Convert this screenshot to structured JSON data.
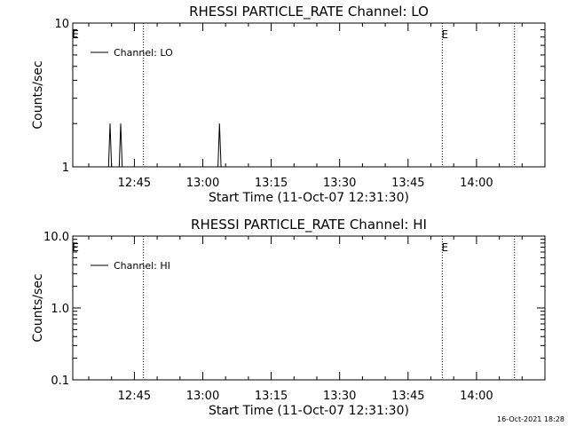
{
  "chart_data": [
    {
      "type": "line",
      "title": "RHESSI PARTICLE_RATE Channel: LO",
      "xlabel": "Start Time (11-Oct-07 12:31:30)",
      "ylabel": "Counts/sec",
      "yscale": "log",
      "ylim": [
        1,
        10
      ],
      "xlim": [
        "12:31:30",
        "14:15:00"
      ],
      "xticks": [
        "12:45",
        "13:00",
        "13:15",
        "13:30",
        "13:45",
        "14:00"
      ],
      "yticks": [
        "1",
        "10"
      ],
      "legend": {
        "position": "top-left",
        "entries": [
          "Channel: LO"
        ]
      },
      "markers": [
        {
          "text": "E",
          "x": "12:31:30"
        },
        {
          "text": "E",
          "x": "13:52:30"
        }
      ],
      "vlines": [
        "12:47:00",
        "13:52:30",
        "14:08:20"
      ],
      "series": [
        {
          "name": "Channel: LO",
          "points": [
            {
              "x": "12:31:30",
              "y": 1
            },
            {
              "x": "12:39:20",
              "y": 1
            },
            {
              "x": "12:39:40",
              "y": 2
            },
            {
              "x": "12:40:00",
              "y": 1
            },
            {
              "x": "12:41:40",
              "y": 1
            },
            {
              "x": "12:42:00",
              "y": 2
            },
            {
              "x": "12:42:20",
              "y": 1
            },
            {
              "x": "13:03:20",
              "y": 1
            },
            {
              "x": "13:03:40",
              "y": 2
            },
            {
              "x": "13:04:00",
              "y": 1
            },
            {
              "x": "14:15:00",
              "y": 1
            }
          ]
        }
      ]
    },
    {
      "type": "line",
      "title": "RHESSI PARTICLE_RATE Channel: HI",
      "xlabel": "Start Time (11-Oct-07 12:31:30)",
      "ylabel": "Counts/sec",
      "yscale": "log",
      "ylim": [
        0.1,
        10
      ],
      "xlim": [
        "12:31:30",
        "14:15:00"
      ],
      "xticks": [
        "12:45",
        "13:00",
        "13:15",
        "13:30",
        "13:45",
        "14:00"
      ],
      "yticks": [
        "0.1",
        "1.0",
        "10.0"
      ],
      "legend": {
        "position": "top-left",
        "entries": [
          "Channel: HI"
        ]
      },
      "markers": [
        {
          "text": "E",
          "x": "12:31:30"
        },
        {
          "text": "E",
          "x": "13:52:30"
        }
      ],
      "vlines": [
        "12:47:00",
        "13:52:30",
        "14:08:20"
      ],
      "series": [
        {
          "name": "Channel: HI",
          "points": []
        }
      ]
    }
  ],
  "footer": {
    "stamp": "16-Oct-2021 18:28"
  }
}
